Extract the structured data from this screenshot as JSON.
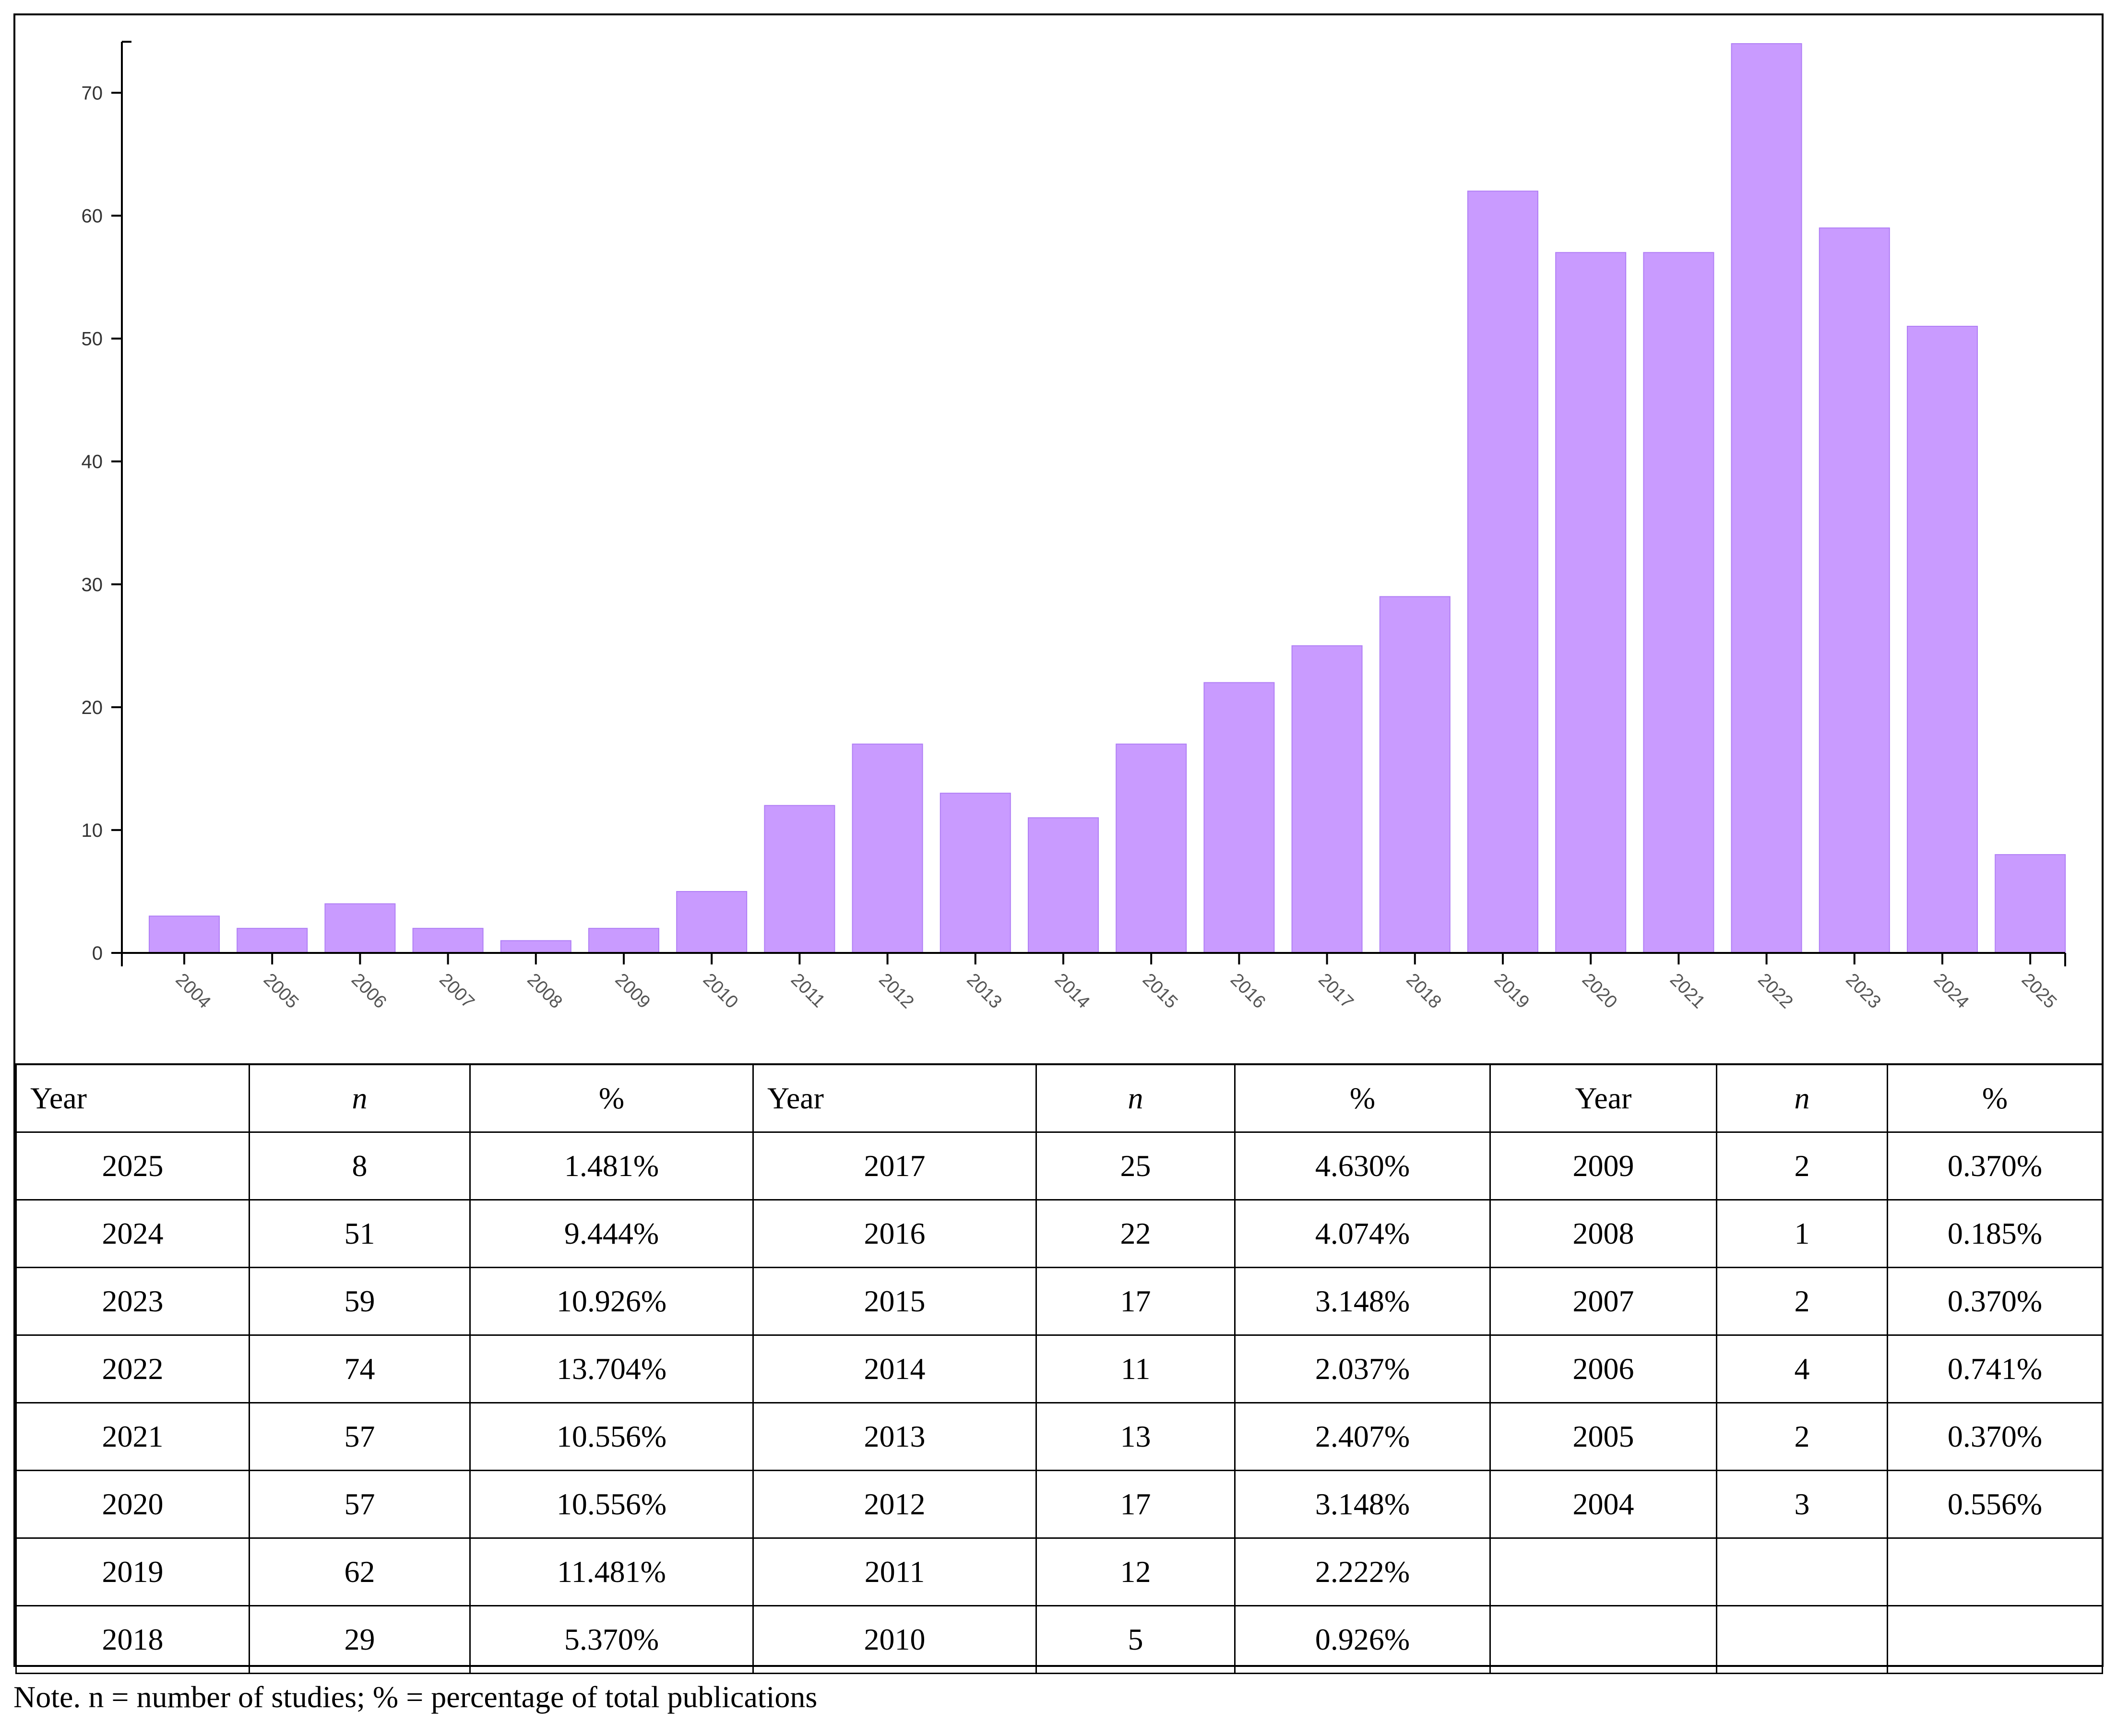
{
  "chart_data": {
    "type": "bar",
    "categories": [
      "2004",
      "2005",
      "2006",
      "2007",
      "2008",
      "2009",
      "2010",
      "2011",
      "2012",
      "2013",
      "2014",
      "2015",
      "2016",
      "2017",
      "2018",
      "2019",
      "2020",
      "2021",
      "2022",
      "2023",
      "2024",
      "2025"
    ],
    "values": [
      3,
      2,
      4,
      2,
      1,
      2,
      5,
      12,
      17,
      13,
      11,
      17,
      22,
      25,
      29,
      62,
      57,
      57,
      74,
      59,
      51,
      8
    ],
    "ylim": [
      0,
      74
    ],
    "yticks": [
      0,
      10,
      20,
      30,
      40,
      50,
      60,
      70
    ],
    "bar_color": "#c99bff",
    "bar_edge_color": "#b07ef5",
    "grid": false
  },
  "table": {
    "headers": [
      "Year",
      "n",
      "%",
      "Year",
      "n",
      "%",
      "Year",
      "n",
      "%"
    ],
    "rows": [
      [
        "2025",
        "8",
        "1.481%",
        "2017",
        "25",
        "4.630%",
        "2009",
        "2",
        "0.370%"
      ],
      [
        "2024",
        "51",
        "9.444%",
        "2016",
        "22",
        "4.074%",
        "2008",
        "1",
        "0.185%"
      ],
      [
        "2023",
        "59",
        "10.926%",
        "2015",
        "17",
        "3.148%",
        "2007",
        "2",
        "0.370%"
      ],
      [
        "2022",
        "74",
        "13.704%",
        "2014",
        "11",
        "2.037%",
        "2006",
        "4",
        "0.741%"
      ],
      [
        "2021",
        "57",
        "10.556%",
        "2013",
        "13",
        "2.407%",
        "2005",
        "2",
        "0.370%"
      ],
      [
        "2020",
        "57",
        "10.556%",
        "2012",
        "17",
        "3.148%",
        "2004",
        "3",
        "0.556%"
      ],
      [
        "2019",
        "62",
        "11.481%",
        "2011",
        "12",
        "2.222%",
        "",
        "",
        " "
      ],
      [
        "2018",
        "29",
        "5.370%",
        "2010",
        "5",
        "0.926%",
        "",
        "",
        ""
      ]
    ]
  },
  "note": "Note. n = number of studies; % = percentage of total publications"
}
